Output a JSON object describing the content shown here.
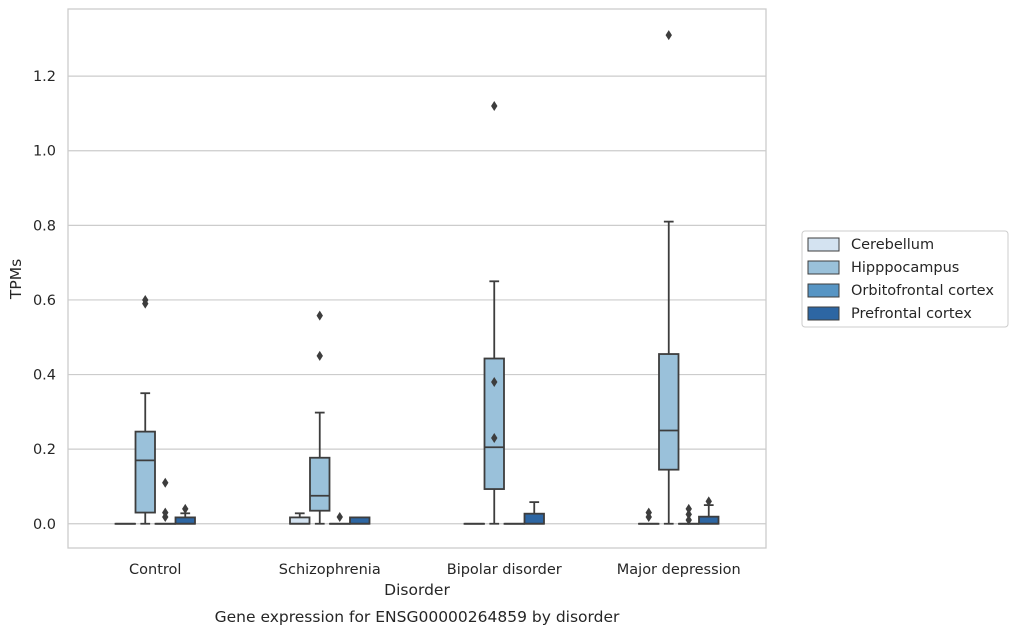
{
  "chart_data": {
    "type": "box",
    "caption": "Gene expression for ENSG00000264859 by disorder",
    "xlabel": "Disorder",
    "ylabel": "TPMs",
    "ylim": [
      -0.065,
      1.38
    ],
    "yticks": [
      0.0,
      0.2,
      0.4,
      0.6,
      0.8,
      1.0,
      1.2
    ],
    "ytick_labels": [
      "0.0",
      "0.2",
      "0.4",
      "0.6",
      "0.8",
      "1.0",
      "1.2"
    ],
    "grid": "horizontal",
    "legend_position": "right",
    "categories": [
      "Control",
      "Schizophrenia",
      "Bipolar disorder",
      "Major depression"
    ],
    "series": [
      {
        "name": "Cerebellum",
        "color": "#d4e3f1",
        "boxes": [
          {
            "q1": 0,
            "median": 0,
            "q3": 0,
            "whisker_low": 0,
            "whisker_high": 0,
            "outliers": []
          },
          {
            "q1": 0,
            "median": 0,
            "q3": 0.017,
            "whisker_low": 0,
            "whisker_high": 0.028,
            "outliers": []
          },
          {
            "q1": 0,
            "median": 0,
            "q3": 0,
            "whisker_low": 0,
            "whisker_high": 0,
            "outliers": []
          },
          {
            "q1": 0,
            "median": 0,
            "q3": 0,
            "whisker_low": 0,
            "whisker_high": 0,
            "outliers": [
              0.018,
              0.03
            ]
          }
        ]
      },
      {
        "name": "Hipppocampus",
        "color": "#9ac1da",
        "boxes": [
          {
            "q1": 0.03,
            "median": 0.17,
            "q3": 0.247,
            "whisker_low": 0,
            "whisker_high": 0.35,
            "outliers": [
              0.59,
              0.6
            ]
          },
          {
            "q1": 0.035,
            "median": 0.075,
            "q3": 0.177,
            "whisker_low": 0,
            "whisker_high": 0.298,
            "outliers": [
              0.45,
              0.558
            ]
          },
          {
            "q1": 0.093,
            "median": 0.205,
            "q3": 0.443,
            "whisker_low": 0,
            "whisker_high": 0.65,
            "outliers": [
              0.23,
              0.38,
              1.12
            ]
          },
          {
            "q1": 0.145,
            "median": 0.25,
            "q3": 0.455,
            "whisker_low": 0,
            "whisker_high": 0.81,
            "outliers": [
              1.31
            ]
          }
        ]
      },
      {
        "name": "Orbitofrontal cortex",
        "color": "#5795c4",
        "boxes": [
          {
            "q1": 0,
            "median": 0,
            "q3": 0,
            "whisker_low": 0,
            "whisker_high": 0,
            "outliers": [
              0.018,
              0.03,
              0.11
            ]
          },
          {
            "q1": 0,
            "median": 0,
            "q3": 0,
            "whisker_low": 0,
            "whisker_high": 0,
            "outliers": [
              0.018
            ]
          },
          {
            "q1": 0,
            "median": 0,
            "q3": 0,
            "whisker_low": 0,
            "whisker_high": 0,
            "outliers": []
          },
          {
            "q1": 0,
            "median": 0,
            "q3": 0,
            "whisker_low": 0,
            "whisker_high": 0,
            "outliers": [
              0.01,
              0.025,
              0.04
            ]
          }
        ]
      },
      {
        "name": "Prefrontal cortex",
        "color": "#2d66a3",
        "boxes": [
          {
            "q1": 0,
            "median": 0,
            "q3": 0.017,
            "whisker_low": 0,
            "whisker_high": 0.028,
            "outliers": [
              0.04
            ]
          },
          {
            "q1": 0,
            "median": 0,
            "q3": 0.017,
            "whisker_low": 0,
            "whisker_high": 0.017,
            "outliers": []
          },
          {
            "q1": 0,
            "median": 0,
            "q3": 0.027,
            "whisker_low": 0,
            "whisker_high": 0.058,
            "outliers": []
          },
          {
            "q1": 0,
            "median": 0,
            "q3": 0.019,
            "whisker_low": 0,
            "whisker_high": 0.05,
            "outliers": [
              0.06
            ]
          }
        ]
      }
    ]
  }
}
